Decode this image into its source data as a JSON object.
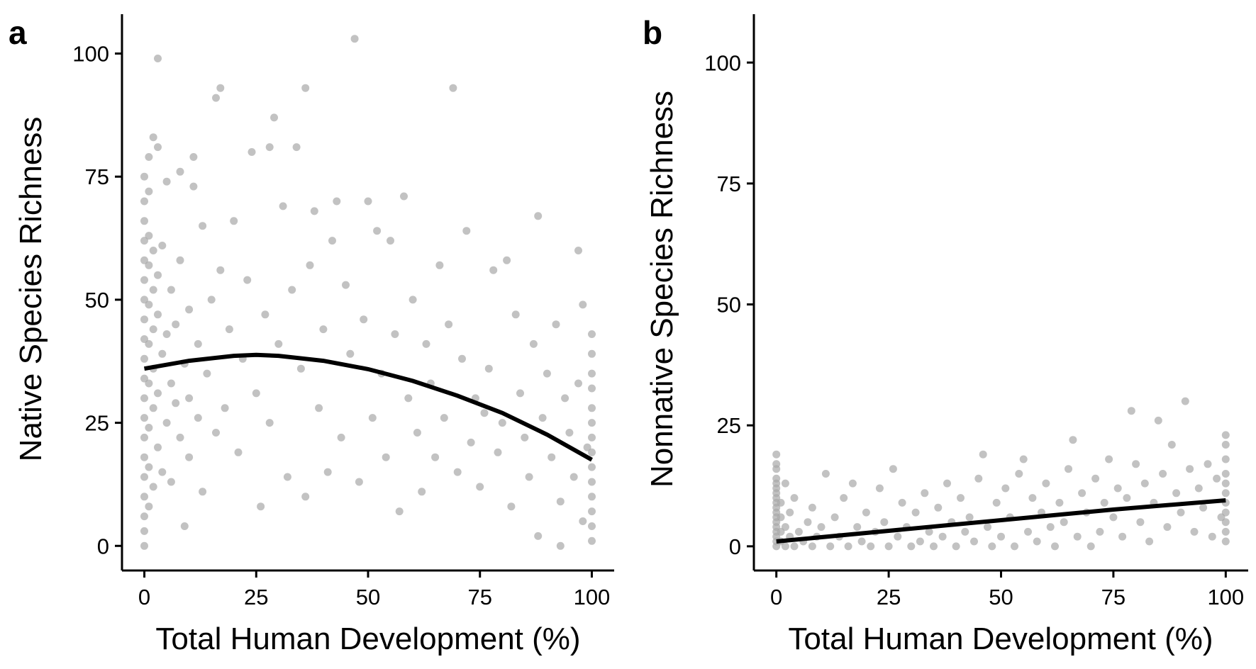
{
  "chart_data": [
    {
      "panel": "a",
      "type": "scatter",
      "xlabel": "Total Human Development (%)",
      "ylabel": "Native Species Richness",
      "xlim": [
        -5,
        105
      ],
      "ylim": [
        -5,
        108
      ],
      "xticks": [
        0,
        25,
        50,
        75,
        100
      ],
      "yticks": [
        0,
        25,
        50,
        75,
        100
      ],
      "grid": false,
      "point_color": "#a8a8a8",
      "fit_color": "#000000",
      "fit": {
        "model": "quadratic",
        "x": [
          0,
          10,
          20,
          25,
          30,
          40,
          50,
          60,
          70,
          80,
          90,
          100
        ],
        "y": [
          36,
          37.6,
          38.6,
          38.8,
          38.6,
          37.6,
          35.9,
          33.5,
          30.5,
          27,
          22.6,
          17.5
        ]
      },
      "points": [
        {
          "x": 0,
          "y": 0
        },
        {
          "x": 0,
          "y": 3
        },
        {
          "x": 0,
          "y": 6
        },
        {
          "x": 0,
          "y": 10
        },
        {
          "x": 0,
          "y": 14
        },
        {
          "x": 0,
          "y": 18
        },
        {
          "x": 0,
          "y": 22
        },
        {
          "x": 0,
          "y": 26
        },
        {
          "x": 0,
          "y": 30
        },
        {
          "x": 0,
          "y": 34
        },
        {
          "x": 0,
          "y": 38
        },
        {
          "x": 0,
          "y": 42
        },
        {
          "x": 0,
          "y": 46
        },
        {
          "x": 0,
          "y": 50
        },
        {
          "x": 0,
          "y": 54
        },
        {
          "x": 0,
          "y": 58
        },
        {
          "x": 0,
          "y": 62
        },
        {
          "x": 0,
          "y": 66
        },
        {
          "x": 0,
          "y": 70
        },
        {
          "x": 0,
          "y": 75
        },
        {
          "x": 1,
          "y": 8
        },
        {
          "x": 1,
          "y": 16
        },
        {
          "x": 1,
          "y": 24
        },
        {
          "x": 1,
          "y": 33
        },
        {
          "x": 1,
          "y": 41
        },
        {
          "x": 1,
          "y": 49
        },
        {
          "x": 1,
          "y": 57
        },
        {
          "x": 1,
          "y": 63
        },
        {
          "x": 1,
          "y": 72
        },
        {
          "x": 1,
          "y": 79
        },
        {
          "x": 2,
          "y": 12
        },
        {
          "x": 2,
          "y": 28
        },
        {
          "x": 2,
          "y": 36
        },
        {
          "x": 2,
          "y": 44
        },
        {
          "x": 2,
          "y": 52
        },
        {
          "x": 2,
          "y": 60
        },
        {
          "x": 2,
          "y": 83
        },
        {
          "x": 3,
          "y": 99
        },
        {
          "x": 3,
          "y": 20
        },
        {
          "x": 3,
          "y": 31
        },
        {
          "x": 3,
          "y": 47
        },
        {
          "x": 3,
          "y": 55
        },
        {
          "x": 3,
          "y": 81
        },
        {
          "x": 4,
          "y": 15
        },
        {
          "x": 4,
          "y": 39
        },
        {
          "x": 4,
          "y": 61
        },
        {
          "x": 5,
          "y": 25
        },
        {
          "x": 5,
          "y": 43
        },
        {
          "x": 5,
          "y": 74
        },
        {
          "x": 6,
          "y": 13
        },
        {
          "x": 6,
          "y": 33
        },
        {
          "x": 6,
          "y": 52
        },
        {
          "x": 7,
          "y": 29
        },
        {
          "x": 7,
          "y": 45
        },
        {
          "x": 8,
          "y": 22
        },
        {
          "x": 8,
          "y": 58
        },
        {
          "x": 8,
          "y": 76
        },
        {
          "x": 9,
          "y": 4
        },
        {
          "x": 9,
          "y": 37
        },
        {
          "x": 10,
          "y": 18
        },
        {
          "x": 10,
          "y": 30
        },
        {
          "x": 10,
          "y": 48
        },
        {
          "x": 11,
          "y": 79
        },
        {
          "x": 11,
          "y": 73
        },
        {
          "x": 12,
          "y": 26
        },
        {
          "x": 12,
          "y": 41
        },
        {
          "x": 13,
          "y": 11
        },
        {
          "x": 13,
          "y": 65
        },
        {
          "x": 14,
          "y": 35
        },
        {
          "x": 15,
          "y": 50
        },
        {
          "x": 16,
          "y": 91
        },
        {
          "x": 16,
          "y": 23
        },
        {
          "x": 17,
          "y": 93
        },
        {
          "x": 17,
          "y": 56
        },
        {
          "x": 18,
          "y": 28
        },
        {
          "x": 19,
          "y": 44
        },
        {
          "x": 20,
          "y": 66
        },
        {
          "x": 21,
          "y": 19
        },
        {
          "x": 22,
          "y": 38
        },
        {
          "x": 23,
          "y": 54
        },
        {
          "x": 24,
          "y": 80
        },
        {
          "x": 25,
          "y": 31
        },
        {
          "x": 26,
          "y": 8
        },
        {
          "x": 27,
          "y": 47
        },
        {
          "x": 28,
          "y": 81
        },
        {
          "x": 28,
          "y": 25
        },
        {
          "x": 29,
          "y": 87
        },
        {
          "x": 30,
          "y": 41
        },
        {
          "x": 31,
          "y": 69
        },
        {
          "x": 32,
          "y": 14
        },
        {
          "x": 33,
          "y": 52
        },
        {
          "x": 34,
          "y": 81
        },
        {
          "x": 35,
          "y": 36
        },
        {
          "x": 36,
          "y": 93
        },
        {
          "x": 36,
          "y": 10
        },
        {
          "x": 37,
          "y": 57
        },
        {
          "x": 38,
          "y": 68
        },
        {
          "x": 39,
          "y": 28
        },
        {
          "x": 40,
          "y": 44
        },
        {
          "x": 41,
          "y": 15
        },
        {
          "x": 42,
          "y": 62
        },
        {
          "x": 43,
          "y": 70
        },
        {
          "x": 44,
          "y": 22
        },
        {
          "x": 45,
          "y": 53
        },
        {
          "x": 46,
          "y": 39
        },
        {
          "x": 47,
          "y": 103
        },
        {
          "x": 48,
          "y": 13
        },
        {
          "x": 49,
          "y": 46
        },
        {
          "x": 50,
          "y": 70
        },
        {
          "x": 51,
          "y": 26
        },
        {
          "x": 52,
          "y": 64
        },
        {
          "x": 53,
          "y": 35
        },
        {
          "x": 54,
          "y": 18
        },
        {
          "x": 55,
          "y": 62
        },
        {
          "x": 56,
          "y": 43
        },
        {
          "x": 57,
          "y": 7
        },
        {
          "x": 58,
          "y": 71
        },
        {
          "x": 59,
          "y": 30
        },
        {
          "x": 60,
          "y": 50
        },
        {
          "x": 61,
          "y": 23
        },
        {
          "x": 62,
          "y": 11
        },
        {
          "x": 63,
          "y": 41
        },
        {
          "x": 64,
          "y": 33
        },
        {
          "x": 65,
          "y": 18
        },
        {
          "x": 66,
          "y": 57
        },
        {
          "x": 67,
          "y": 26
        },
        {
          "x": 68,
          "y": 45
        },
        {
          "x": 69,
          "y": 93
        },
        {
          "x": 70,
          "y": 15
        },
        {
          "x": 71,
          "y": 38
        },
        {
          "x": 72,
          "y": 64
        },
        {
          "x": 73,
          "y": 21
        },
        {
          "x": 74,
          "y": 30
        },
        {
          "x": 75,
          "y": 12
        },
        {
          "x": 76,
          "y": 27
        },
        {
          "x": 77,
          "y": 36
        },
        {
          "x": 78,
          "y": 56
        },
        {
          "x": 79,
          "y": 19
        },
        {
          "x": 80,
          "y": 25
        },
        {
          "x": 81,
          "y": 58
        },
        {
          "x": 82,
          "y": 8
        },
        {
          "x": 83,
          "y": 47
        },
        {
          "x": 84,
          "y": 31
        },
        {
          "x": 85,
          "y": 22
        },
        {
          "x": 86,
          "y": 14
        },
        {
          "x": 87,
          "y": 41
        },
        {
          "x": 88,
          "y": 67
        },
        {
          "x": 88,
          "y": 2
        },
        {
          "x": 89,
          "y": 26
        },
        {
          "x": 90,
          "y": 35
        },
        {
          "x": 91,
          "y": 18
        },
        {
          "x": 92,
          "y": 45
        },
        {
          "x": 93,
          "y": 9
        },
        {
          "x": 93,
          "y": 0
        },
        {
          "x": 94,
          "y": 30
        },
        {
          "x": 95,
          "y": 23
        },
        {
          "x": 96,
          "y": 14
        },
        {
          "x": 97,
          "y": 60
        },
        {
          "x": 97,
          "y": 33
        },
        {
          "x": 98,
          "y": 49
        },
        {
          "x": 98,
          "y": 5
        },
        {
          "x": 99,
          "y": 20
        },
        {
          "x": 100,
          "y": 1
        },
        {
          "x": 100,
          "y": 4
        },
        {
          "x": 100,
          "y": 7
        },
        {
          "x": 100,
          "y": 10
        },
        {
          "x": 100,
          "y": 13
        },
        {
          "x": 100,
          "y": 16
        },
        {
          "x": 100,
          "y": 19
        },
        {
          "x": 100,
          "y": 22
        },
        {
          "x": 100,
          "y": 25
        },
        {
          "x": 100,
          "y": 28
        },
        {
          "x": 100,
          "y": 32
        },
        {
          "x": 100,
          "y": 35
        },
        {
          "x": 100,
          "y": 39
        },
        {
          "x": 100,
          "y": 43
        }
      ]
    },
    {
      "panel": "b",
      "type": "scatter",
      "xlabel": "Total Human Development (%)",
      "ylabel": "Nonnative Species Richness",
      "xlim": [
        -5,
        105
      ],
      "ylim": [
        -5,
        110
      ],
      "xticks": [
        0,
        25,
        50,
        75,
        100
      ],
      "yticks": [
        0,
        25,
        50,
        75,
        100
      ],
      "grid": false,
      "point_color": "#a8a8a8",
      "fit_color": "#000000",
      "fit": {
        "model": "linear",
        "x": [
          0,
          25,
          50,
          75,
          100
        ],
        "y": [
          1,
          3.2,
          5.4,
          7.6,
          9.5
        ]
      },
      "points": [
        {
          "x": 0,
          "y": 0
        },
        {
          "x": 0,
          "y": 1
        },
        {
          "x": 0,
          "y": 2
        },
        {
          "x": 0,
          "y": 3
        },
        {
          "x": 0,
          "y": 4
        },
        {
          "x": 0,
          "y": 5
        },
        {
          "x": 0,
          "y": 6
        },
        {
          "x": 0,
          "y": 7
        },
        {
          "x": 0,
          "y": 8
        },
        {
          "x": 0,
          "y": 9
        },
        {
          "x": 0,
          "y": 10
        },
        {
          "x": 0,
          "y": 11
        },
        {
          "x": 0,
          "y": 12
        },
        {
          "x": 0,
          "y": 13
        },
        {
          "x": 0,
          "y": 14
        },
        {
          "x": 0,
          "y": 16
        },
        {
          "x": 0,
          "y": 17
        },
        {
          "x": 0,
          "y": 19
        },
        {
          "x": 1,
          "y": 1
        },
        {
          "x": 1,
          "y": 3
        },
        {
          "x": 1,
          "y": 6
        },
        {
          "x": 1,
          "y": 9
        },
        {
          "x": 2,
          "y": 0
        },
        {
          "x": 2,
          "y": 4
        },
        {
          "x": 2,
          "y": 13
        },
        {
          "x": 3,
          "y": 2
        },
        {
          "x": 3,
          "y": 7
        },
        {
          "x": 4,
          "y": 0
        },
        {
          "x": 4,
          "y": 10
        },
        {
          "x": 5,
          "y": 3
        },
        {
          "x": 6,
          "y": 1
        },
        {
          "x": 7,
          "y": 5
        },
        {
          "x": 8,
          "y": 0
        },
        {
          "x": 8,
          "y": 8
        },
        {
          "x": 9,
          "y": 2
        },
        {
          "x": 10,
          "y": 4
        },
        {
          "x": 11,
          "y": 15
        },
        {
          "x": 12,
          "y": 0
        },
        {
          "x": 13,
          "y": 6
        },
        {
          "x": 14,
          "y": 2
        },
        {
          "x": 15,
          "y": 10
        },
        {
          "x": 16,
          "y": 0
        },
        {
          "x": 17,
          "y": 13
        },
        {
          "x": 18,
          "y": 4
        },
        {
          "x": 19,
          "y": 1
        },
        {
          "x": 20,
          "y": 7
        },
        {
          "x": 21,
          "y": 0
        },
        {
          "x": 22,
          "y": 3
        },
        {
          "x": 23,
          "y": 12
        },
        {
          "x": 24,
          "y": 5
        },
        {
          "x": 25,
          "y": 0
        },
        {
          "x": 26,
          "y": 16
        },
        {
          "x": 27,
          "y": 2
        },
        {
          "x": 28,
          "y": 9
        },
        {
          "x": 29,
          "y": 4
        },
        {
          "x": 30,
          "y": 0
        },
        {
          "x": 31,
          "y": 7
        },
        {
          "x": 32,
          "y": 1
        },
        {
          "x": 33,
          "y": 11
        },
        {
          "x": 34,
          "y": 3
        },
        {
          "x": 35,
          "y": 0
        },
        {
          "x": 36,
          "y": 8
        },
        {
          "x": 37,
          "y": 2
        },
        {
          "x": 38,
          "y": 13
        },
        {
          "x": 39,
          "y": 5
        },
        {
          "x": 40,
          "y": 0
        },
        {
          "x": 41,
          "y": 10
        },
        {
          "x": 42,
          "y": 3
        },
        {
          "x": 43,
          "y": 6
        },
        {
          "x": 44,
          "y": 1
        },
        {
          "x": 45,
          "y": 14
        },
        {
          "x": 46,
          "y": 19
        },
        {
          "x": 47,
          "y": 4
        },
        {
          "x": 48,
          "y": 0
        },
        {
          "x": 49,
          "y": 9
        },
        {
          "x": 50,
          "y": 2
        },
        {
          "x": 51,
          "y": 12
        },
        {
          "x": 52,
          "y": 6
        },
        {
          "x": 53,
          "y": 0
        },
        {
          "x": 54,
          "y": 15
        },
        {
          "x": 55,
          "y": 18
        },
        {
          "x": 56,
          "y": 3
        },
        {
          "x": 57,
          "y": 10
        },
        {
          "x": 58,
          "y": 1
        },
        {
          "x": 59,
          "y": 7
        },
        {
          "x": 60,
          "y": 13
        },
        {
          "x": 61,
          "y": 4
        },
        {
          "x": 62,
          "y": 0
        },
        {
          "x": 63,
          "y": 9
        },
        {
          "x": 64,
          "y": 5
        },
        {
          "x": 65,
          "y": 16
        },
        {
          "x": 66,
          "y": 22
        },
        {
          "x": 67,
          "y": 2
        },
        {
          "x": 68,
          "y": 11
        },
        {
          "x": 69,
          "y": 7
        },
        {
          "x": 70,
          "y": 0
        },
        {
          "x": 71,
          "y": 14
        },
        {
          "x": 72,
          "y": 3
        },
        {
          "x": 73,
          "y": 9
        },
        {
          "x": 74,
          "y": 18
        },
        {
          "x": 75,
          "y": 6
        },
        {
          "x": 76,
          "y": 12
        },
        {
          "x": 77,
          "y": 2
        },
        {
          "x": 78,
          "y": 10
        },
        {
          "x": 79,
          "y": 28
        },
        {
          "x": 80,
          "y": 17
        },
        {
          "x": 81,
          "y": 5
        },
        {
          "x": 82,
          "y": 13
        },
        {
          "x": 83,
          "y": 1
        },
        {
          "x": 84,
          "y": 9
        },
        {
          "x": 85,
          "y": 26
        },
        {
          "x": 86,
          "y": 15
        },
        {
          "x": 87,
          "y": 4
        },
        {
          "x": 88,
          "y": 21
        },
        {
          "x": 89,
          "y": 11
        },
        {
          "x": 90,
          "y": 7
        },
        {
          "x": 91,
          "y": 30
        },
        {
          "x": 92,
          "y": 16
        },
        {
          "x": 93,
          "y": 3
        },
        {
          "x": 94,
          "y": 12
        },
        {
          "x": 95,
          "y": 8
        },
        {
          "x": 96,
          "y": 17
        },
        {
          "x": 97,
          "y": 2
        },
        {
          "x": 98,
          "y": 14
        },
        {
          "x": 99,
          "y": 6
        },
        {
          "x": 100,
          "y": 1
        },
        {
          "x": 100,
          "y": 3
        },
        {
          "x": 100,
          "y": 5
        },
        {
          "x": 100,
          "y": 7
        },
        {
          "x": 100,
          "y": 9
        },
        {
          "x": 100,
          "y": 11
        },
        {
          "x": 100,
          "y": 13
        },
        {
          "x": 100,
          "y": 15
        },
        {
          "x": 100,
          "y": 18
        },
        {
          "x": 100,
          "y": 21
        },
        {
          "x": 100,
          "y": 23
        }
      ]
    }
  ]
}
